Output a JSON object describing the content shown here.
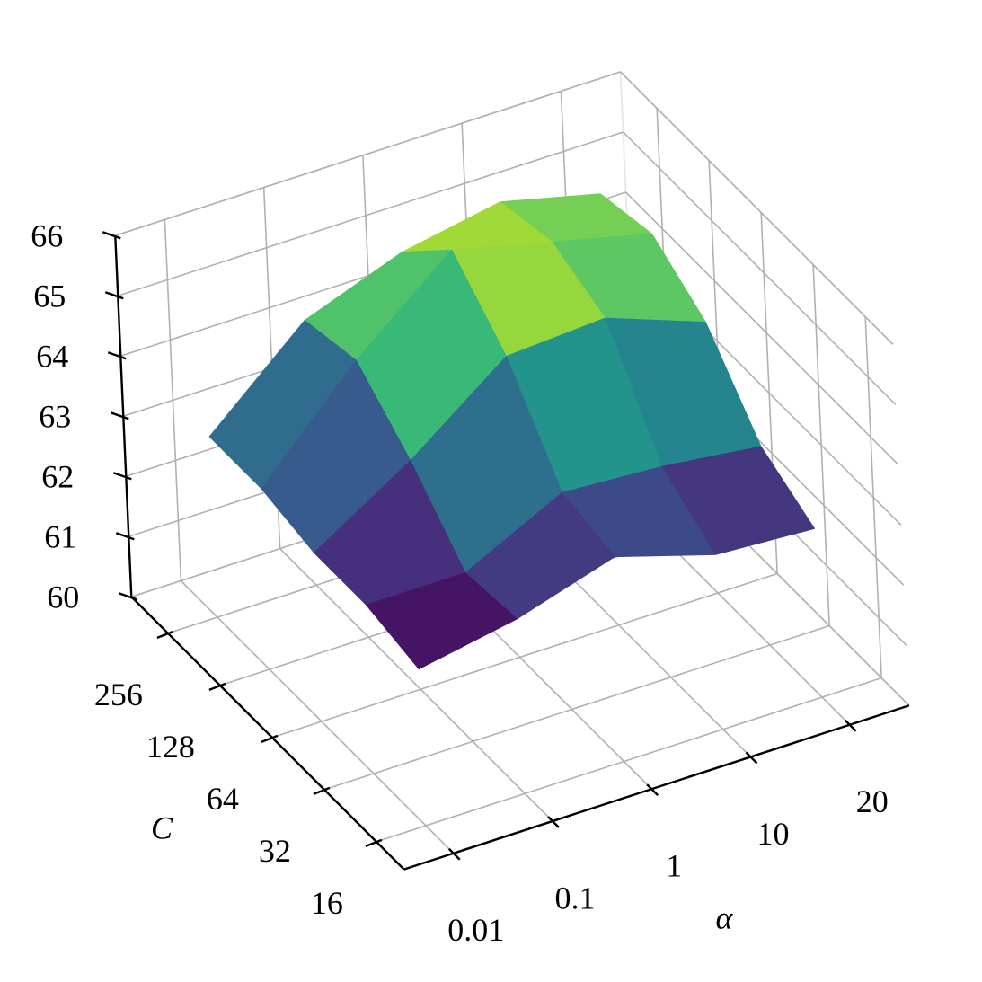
{
  "chart_data": {
    "type": "surface",
    "xlabel": "α",
    "ylabel": "C",
    "xcategories": [
      "0.01",
      "0.1",
      "1",
      "10",
      "20"
    ],
    "ycategories": [
      16,
      32,
      64,
      128,
      256
    ],
    "z": [
      [
        62.6,
        62.9,
        63.4,
        62.9,
        62.8
      ],
      [
        62.8,
        62.8,
        63.6,
        63.5,
        63.3
      ],
      [
        62.8,
        63.8,
        65.0,
        65.1,
        64.5
      ],
      [
        63.0,
        64.6,
        65.9,
        65.5,
        65.1
      ],
      [
        63.0,
        64.4,
        65.0,
        65.3,
        64.9
      ]
    ],
    "zlim": [
      60,
      66
    ],
    "zticks": [
      60,
      61,
      62,
      63,
      64,
      65,
      66
    ],
    "colormap": "viridis",
    "grid": true
  }
}
